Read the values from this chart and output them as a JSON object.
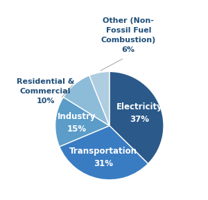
{
  "labels": [
    "Electricity",
    "Transportation",
    "Industry",
    "Residential &\nCommercial",
    "Other (Non-\nFossil Fuel\nCombustion)"
  ],
  "values": [
    37,
    31,
    15,
    10,
    6
  ],
  "colors": [
    "#2B5A8A",
    "#3A7CC2",
    "#5B9CC8",
    "#8DBCD9",
    "#AECDE0"
  ],
  "pct_labels": [
    "37%",
    "31%",
    "15%",
    "10%",
    "6%"
  ],
  "inside_label_color": "#FFFFFF",
  "outside_label_color": "#1F4E79",
  "startangle": 90,
  "figsize": [
    3.0,
    2.89
  ],
  "dpi": 100,
  "connector_color": "#AAAAAA"
}
